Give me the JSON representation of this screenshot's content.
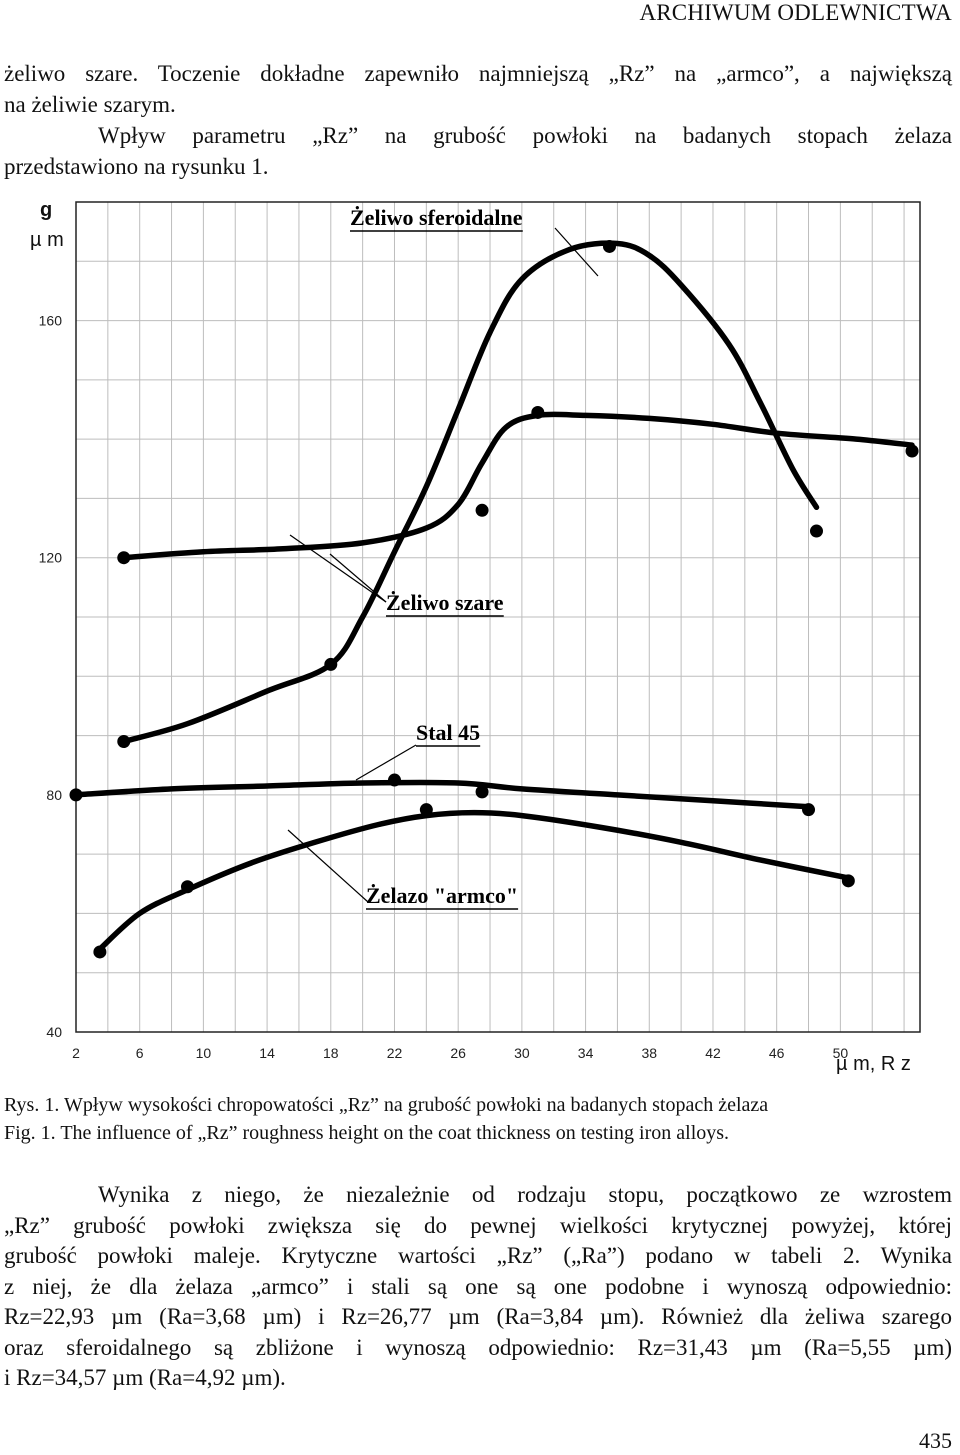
{
  "header": {
    "journal": "ARCHIWUM ODLEWNICTWA"
  },
  "paragraph1": {
    "line1": "żeliwo szare. Toczenie dokładne zapewniło najmniejszą „Rz” na „armco”, a największą",
    "line2": "na żeliwie szarym.",
    "line3": "Wpływ parametru „Rz” na grubość powłoki na badanych stopach żelaza",
    "line4": "przedstawiono na rysunku 1."
  },
  "chart_data": {
    "type": "line",
    "y_unit_lines": [
      "g",
      "µ m"
    ],
    "x_unit": "µ m, R z",
    "x_ticks": [
      2,
      6,
      10,
      14,
      18,
      22,
      26,
      30,
      34,
      38,
      42,
      46,
      50
    ],
    "y_ticks": [
      40,
      80,
      120,
      160
    ],
    "xlim": [
      2,
      55
    ],
    "ylim": [
      40,
      180
    ],
    "grid": true,
    "series": [
      {
        "name": "Żeliwo sferoidalne",
        "curve": [
          [
            5,
            89
          ],
          [
            9,
            92
          ],
          [
            14,
            97.5
          ],
          [
            18,
            102
          ],
          [
            20,
            110
          ],
          [
            22,
            121
          ],
          [
            24,
            132
          ],
          [
            26,
            145
          ],
          [
            28,
            158
          ],
          [
            30,
            167
          ],
          [
            33,
            172
          ],
          [
            36,
            173
          ],
          [
            38,
            171
          ],
          [
            40,
            166
          ],
          [
            43,
            156
          ],
          [
            45,
            146
          ],
          [
            47,
            135
          ],
          [
            48.5,
            128.5
          ]
        ],
        "points": [
          [
            5,
            89
          ],
          [
            18,
            102
          ],
          [
            35.5,
            172.5
          ],
          [
            48.5,
            124.5
          ]
        ]
      },
      {
        "name": "Żeliwo szare",
        "curve": [
          [
            5,
            120
          ],
          [
            10,
            121
          ],
          [
            15,
            121.5
          ],
          [
            20,
            122.5
          ],
          [
            24,
            125
          ],
          [
            26,
            129
          ],
          [
            27.5,
            136
          ],
          [
            29,
            142
          ],
          [
            31,
            144
          ],
          [
            34,
            144
          ],
          [
            38,
            143.5
          ],
          [
            42,
            142.5
          ],
          [
            46,
            141
          ],
          [
            51,
            140
          ],
          [
            54.5,
            139
          ]
        ],
        "points": [
          [
            5,
            120
          ],
          [
            27.5,
            128
          ],
          [
            31,
            144.5
          ],
          [
            54.5,
            138
          ]
        ]
      },
      {
        "name": "Stal 45",
        "curve": [
          [
            2,
            80
          ],
          [
            8,
            81
          ],
          [
            14,
            81.5
          ],
          [
            20,
            82
          ],
          [
            26,
            82
          ],
          [
            30,
            81
          ],
          [
            36,
            80
          ],
          [
            42,
            79
          ],
          [
            48,
            78
          ]
        ],
        "points": [
          [
            2,
            80
          ],
          [
            22,
            82.5
          ],
          [
            27.5,
            80.5
          ],
          [
            48,
            77.5
          ]
        ]
      },
      {
        "name": "Żelazo \"armco\"",
        "curve": [
          [
            3.5,
            54
          ],
          [
            6,
            60
          ],
          [
            9,
            64
          ],
          [
            13,
            68.5
          ],
          [
            17,
            72
          ],
          [
            21,
            75
          ],
          [
            24,
            76.5
          ],
          [
            27,
            77
          ],
          [
            30,
            76.5
          ],
          [
            35,
            74.5
          ],
          [
            40,
            72
          ],
          [
            45,
            69
          ],
          [
            50.5,
            66
          ]
        ],
        "points": [
          [
            3.5,
            53.5
          ],
          [
            9,
            64.5
          ],
          [
            24,
            77.5
          ],
          [
            50.5,
            65.5
          ]
        ]
      }
    ]
  },
  "captions": {
    "rys": "Rys. 1. Wpływ wysokości chropowatości „Rz” na grubość powłoki na badanych stopach żelaza",
    "fig": "Fig. 1. The influence of „Rz” roughness height on the coat thickness on testing iron alloys."
  },
  "paragraph2": {
    "line1": "Wynika z niego, że niezależnie od rodzaju stopu, początkowo ze wzrostem",
    "line2": "„Rz” grubość powłoki zwiększa się do pewnej wielkości krytycznej powyżej, której",
    "line3": "grubość powłoki maleje. Krytyczne wartości „Rz” („Ra”) podano w tabeli 2. Wynika",
    "line4": "z niej, że dla żelaza „armco” i stali są one są one podobne i wynoszą odpowiednio:",
    "line5": "Rz=22,93 µm (Ra=3,68 µm) i Rz=26,77 µm (Ra=3,84 µm). Również dla żeliwa szarego",
    "line6": "oraz sferoidalnego są zbliżone i wynoszą odpowiednio: Rz=31,43 µm (Ra=5,55 µm)",
    "line7": "i Rz=34,57 µm (Ra=4,92 µm)."
  },
  "page_number": "435"
}
